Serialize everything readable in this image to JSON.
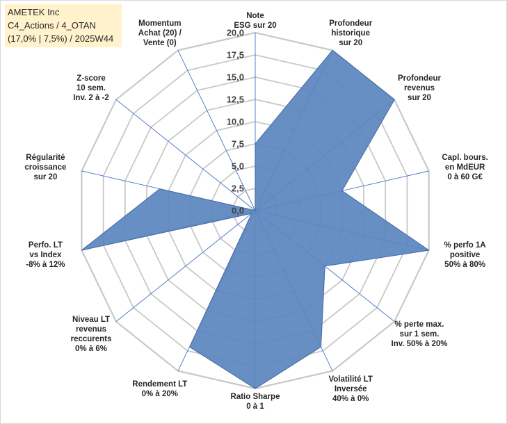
{
  "info_box": {
    "line1": "AMETEK Inc",
    "line2": "C4_Actions / 4_OTAN",
    "line3": "(17,0% | 7,5%) / 2025W44"
  },
  "colors": {
    "fill": "#5b86be",
    "stroke": "#4a72a8",
    "grid": "#c8c8c8",
    "spoke": "#4472c4",
    "info_bg": "#fff2cc"
  },
  "chart_data": {
    "type": "radar",
    "rlim": [
      0,
      20
    ],
    "ticks": [
      "0,0",
      "2,5",
      "5,0",
      "7,5",
      "10,0",
      "12,5",
      "15,0",
      "17,5",
      "20,0"
    ],
    "axes": [
      {
        "label": [
          "Note",
          "ESG sur 20"
        ],
        "value": 7.5
      },
      {
        "label": [
          "Profondeur",
          "historique",
          "sur 20"
        ],
        "value": 20
      },
      {
        "label": [
          "Profondeur",
          "revenus",
          "sur 20"
        ],
        "value": 20
      },
      {
        "label": [
          "Capl. bours.",
          "en MdEUR",
          "0 à 60 G€"
        ],
        "value": 10
      },
      {
        "label": [
          "% perfo 1A",
          "positive",
          "50% à 80%"
        ],
        "value": 20
      },
      {
        "label": [
          "% perte max.",
          "sur 1 sem.",
          "Inv. 50% à 20%"
        ],
        "value": 10
      },
      {
        "label": [
          "Volatilité LT",
          "Inversée",
          "40% à 0%"
        ],
        "value": 17
      },
      {
        "label": [
          "Ratio Sharpe",
          "0 à 1"
        ],
        "value": 20
      },
      {
        "label": [
          "Rendement LT",
          "0% à 20%"
        ],
        "value": 17
      },
      {
        "label": [
          "Niveau LT",
          "revenus",
          "reccurents",
          "0% à 6%"
        ],
        "value": 0.5
      },
      {
        "label": [
          "Perfo. LT",
          "vs Index",
          "-8% à 12%"
        ],
        "value": 20
      },
      {
        "label": [
          "Régularité",
          "croissance",
          "sur 20"
        ],
        "value": 11
      },
      {
        "label": [
          "Z-score",
          "10 sem.",
          "Inv. 2 à -2"
        ],
        "value": 0
      },
      {
        "label": [
          "Momentum",
          "Achat (20) /",
          "Vente (0)"
        ],
        "value": 0
      }
    ]
  }
}
